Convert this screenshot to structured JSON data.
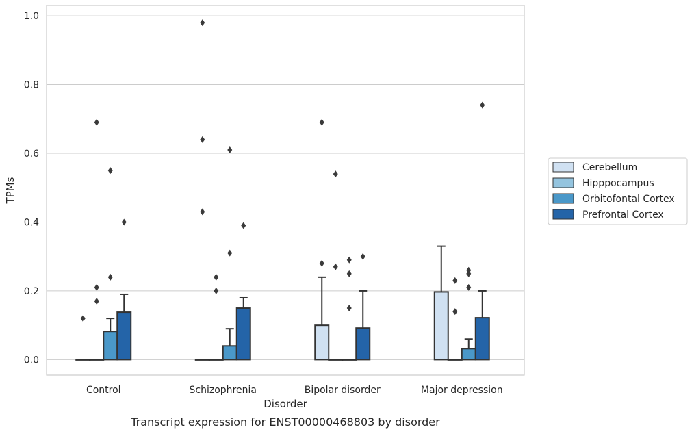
{
  "chart_data": {
    "type": "bar",
    "caption": "Transcript expression for ENST00000468803 by disorder",
    "xlabel": "Disorder",
    "ylabel": "TPMs",
    "ylim": [
      -0.045,
      1.03
    ],
    "yticks": [
      0.0,
      0.2,
      0.4,
      0.6,
      0.8,
      1.0
    ],
    "ytick_labels": [
      "0.0",
      "0.2",
      "0.4",
      "0.6",
      "0.8",
      "1.0"
    ],
    "grid": true,
    "legend_position": "right",
    "categories": [
      "Control",
      "Schizophrenia",
      "Bipolar disorder",
      "Major depression"
    ],
    "series": [
      {
        "name": "Cerebellum",
        "color": "#d0e1f2",
        "values": [
          0.0,
          0.0,
          0.1,
          0.197
        ],
        "error_upper": [
          null,
          null,
          0.24,
          0.33
        ],
        "outliers": [
          [
            0.12
          ],
          [
            0.98,
            0.64,
            0.43
          ],
          [
            0.69,
            0.28
          ],
          []
        ]
      },
      {
        "name": "Hipppocampus",
        "color": "#94c4df",
        "values": [
          0.0,
          0.0,
          0.0,
          0.0
        ],
        "error_upper": [
          null,
          null,
          null,
          null
        ],
        "outliers": [
          [
            0.69,
            0.21,
            0.17
          ],
          [
            0.24,
            0.2
          ],
          [
            0.54,
            0.27
          ],
          [
            0.23,
            0.14
          ]
        ]
      },
      {
        "name": "Orbitofontal Cortex",
        "color": "#4a98c9",
        "values": [
          0.082,
          0.04,
          0.0,
          0.032
        ],
        "error_upper": [
          0.12,
          0.09,
          null,
          0.06
        ],
        "outliers": [
          [
            0.55,
            0.24
          ],
          [
            0.61,
            0.31
          ],
          [
            0.29,
            0.25,
            0.15
          ],
          [
            0.26,
            0.25,
            0.21
          ]
        ]
      },
      {
        "name": "Prefrontal Cortex",
        "color": "#2464a8",
        "values": [
          0.138,
          0.15,
          0.092,
          0.122
        ],
        "error_upper": [
          0.19,
          0.18,
          0.2,
          0.2
        ],
        "outliers": [
          [
            0.4
          ],
          [
            0.39
          ],
          [
            0.3
          ],
          [
            0.74
          ]
        ]
      }
    ]
  }
}
